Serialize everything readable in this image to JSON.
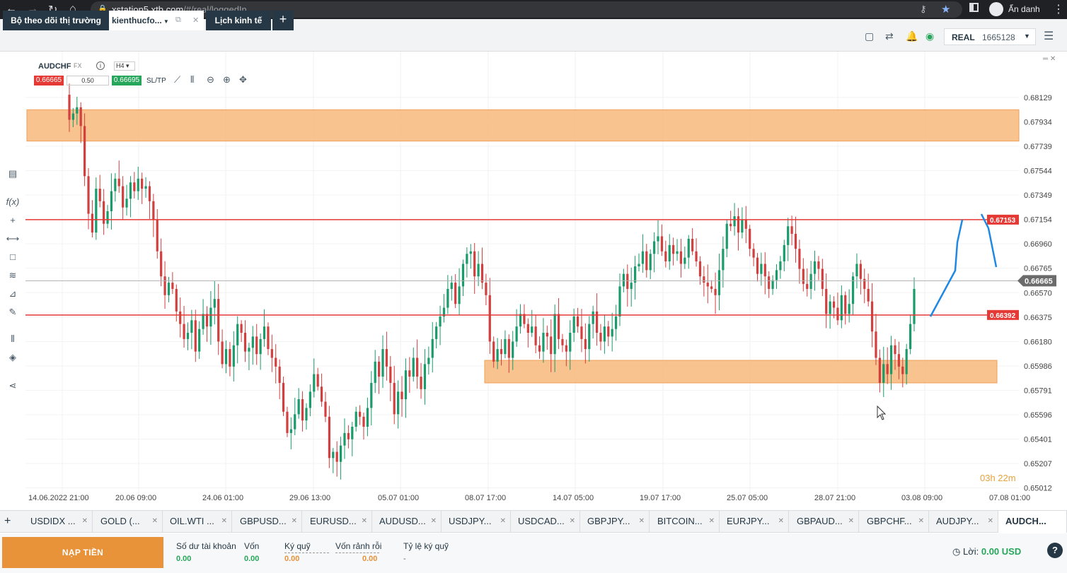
{
  "browser": {
    "url_host": "xstation5.xtb.com",
    "url_path": "/#/real/loggedIn",
    "profile_name": "Ẩn danh"
  },
  "header": {
    "tabs": [
      {
        "label": "Bộ theo dõi thị trường"
      },
      {
        "label": "kienthucfo..."
      },
      {
        "label": "Lịch kinh tế"
      }
    ],
    "account_type": "REAL",
    "account_number": "1665128"
  },
  "chart": {
    "symbol": "AUDCHF",
    "market": "FX",
    "timeframe": "H4",
    "sell_price": "0.66665",
    "volume": "0.50",
    "buy_price": "0.66695",
    "sltp_label": "SL/TP",
    "countdown": "03h 22m"
  },
  "chart_data": {
    "type": "candlestick",
    "y_ticks": [
      "0.68129",
      "0.67934",
      "0.67739",
      "0.67544",
      "0.67349",
      "0.67154",
      "0.66960",
      "0.66765",
      "0.66570",
      "0.66375",
      "0.66180",
      "0.65986",
      "0.65791",
      "0.65596",
      "0.65401",
      "0.65207",
      "0.65012"
    ],
    "x_ticks": [
      "14.06.2022 21:00",
      "20.06 09:00",
      "24.06 01:00",
      "29.06 13:00",
      "05.07 01:00",
      "08.07 17:00",
      "14.07 05:00",
      "19.07 17:00",
      "25.07 05:00",
      "28.07 21:00",
      "03.08 09:00",
      "07.08 01:00"
    ],
    "ylim": [
      0.6497,
      0.6828
    ],
    "current_price": "0.66665",
    "horizontal_lines": [
      {
        "label": "0.67153",
        "value": 0.67153,
        "color": "#e53935"
      },
      {
        "label": "0.66392",
        "value": 0.66392,
        "color": "#e53935"
      }
    ],
    "zones": [
      {
        "from": 0.6778,
        "to": 0.6803,
        "color": "#f7b97a"
      },
      {
        "from": 0.6585,
        "to": 0.6603,
        "color": "#f7b97a"
      }
    ],
    "closes": [
      0.6795,
      0.68,
      0.6805,
      0.679,
      0.675,
      0.672,
      0.6705,
      0.674,
      0.673,
      0.6712,
      0.6722,
      0.6738,
      0.6748,
      0.6742,
      0.6725,
      0.6732,
      0.6745,
      0.6738,
      0.6748,
      0.674,
      0.6742,
      0.673,
      0.6715,
      0.669,
      0.667,
      0.6655,
      0.6665,
      0.666,
      0.6642,
      0.6632,
      0.662,
      0.6625,
      0.6635,
      0.661,
      0.6628,
      0.664,
      0.663,
      0.6645,
      0.6652,
      0.6618,
      0.66,
      0.6612,
      0.6598,
      0.6615,
      0.6632,
      0.6625,
      0.661,
      0.6613,
      0.6622,
      0.6608,
      0.662,
      0.663,
      0.6612,
      0.6605,
      0.6598,
      0.6585,
      0.6562,
      0.6545,
      0.6548,
      0.656,
      0.6572,
      0.6555,
      0.6565,
      0.6578,
      0.6592,
      0.6582,
      0.657,
      0.6558,
      0.6525,
      0.653,
      0.6522,
      0.6535,
      0.6545,
      0.654,
      0.655,
      0.6562,
      0.6558,
      0.655,
      0.6565,
      0.6585,
      0.6602,
      0.659,
      0.6612,
      0.6598,
      0.6585,
      0.656,
      0.6578,
      0.6572,
      0.6595,
      0.659,
      0.6605,
      0.659,
      0.658,
      0.66,
      0.6605,
      0.662,
      0.663,
      0.6638,
      0.6645,
      0.666,
      0.6665,
      0.6648,
      0.6662,
      0.668,
      0.6688,
      0.669,
      0.667,
      0.668,
      0.6665,
      0.6655,
      0.6618,
      0.6602,
      0.6612,
      0.6608,
      0.662,
      0.6605,
      0.6618,
      0.663,
      0.664,
      0.6632,
      0.6625,
      0.663,
      0.6615,
      0.661,
      0.6625,
      0.6622,
      0.6608,
      0.664,
      0.662,
      0.6615,
      0.661,
      0.6625,
      0.6638,
      0.663,
      0.662,
      0.6612,
      0.6632,
      0.6642,
      0.6625,
      0.6618,
      0.663,
      0.6622,
      0.6628,
      0.6638,
      0.6662,
      0.6672,
      0.666,
      0.6665,
      0.6678,
      0.668,
      0.669,
      0.6675,
      0.6688,
      0.6698,
      0.6702,
      0.669,
      0.6682,
      0.6695,
      0.6688,
      0.669,
      0.668,
      0.6685,
      0.67,
      0.669,
      0.6682,
      0.667,
      0.6665,
      0.6662,
      0.666,
      0.6655,
      0.6675,
      0.6692,
      0.6712,
      0.671,
      0.6718,
      0.6705,
      0.6715,
      0.6708,
      0.6692,
      0.6685,
      0.6672,
      0.668,
      0.667,
      0.666,
      0.6667,
      0.6675,
      0.6682,
      0.6695,
      0.671,
      0.6704,
      0.6692,
      0.6676,
      0.6664,
      0.666,
      0.6672,
      0.6682,
      0.6676,
      0.666,
      0.664,
      0.665,
      0.6645,
      0.6635,
      0.6655,
      0.664,
      0.6648,
      0.667,
      0.668,
      0.6668,
      0.666,
      0.665,
      0.6626,
      0.6605,
      0.6585,
      0.66,
      0.6592,
      0.6615,
      0.6608,
      0.6598,
      0.6592,
      0.6612,
      0.6632,
      0.666
    ]
  },
  "drawing": {
    "note": ""
  },
  "instruments": [
    "USDIDX ...",
    "GOLD (...",
    "OIL.WTI ...",
    "GBPUSD...",
    "EURUSD...",
    "AUDUSD...",
    "USDJPY...",
    "USDCAD...",
    "GBPJPY...",
    "BITCOIN...",
    "EURJPY...",
    "GBPAUD...",
    "GBPCHF...",
    "AUDJPY...",
    "AUDCH..."
  ],
  "account": {
    "deposit_label": "NẠP TIỀN",
    "balance_label": "Số dư tài khoản",
    "balance_value": "0.00",
    "equity_label": "Vốn",
    "equity_value": "0.00",
    "margin_label": "Ký quỹ",
    "margin_value": "0.00",
    "free_margin_label": "Vốn rảnh rỗi",
    "free_margin_value": "0.00",
    "margin_level_label": "Tỷ lệ ký quỹ",
    "margin_level_value": "-",
    "profit_label": "Lời:",
    "profit_value": "0.00 USD"
  }
}
